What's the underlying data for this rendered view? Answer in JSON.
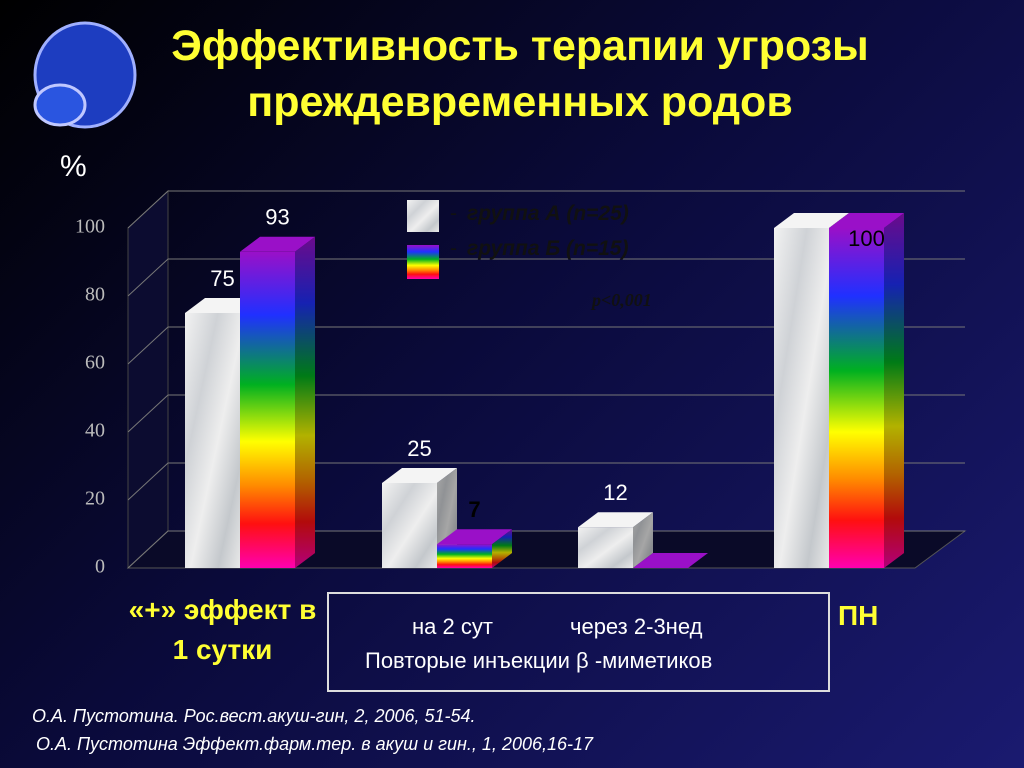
{
  "chart_data": {
    "type": "bar3d",
    "title": "Эффективность терапии угрозы преждевременных родов",
    "y_label": "%",
    "categories": [
      "«+» эффект в 1 сутки",
      "на 2 сут",
      "через 2-3нед",
      "ПН"
    ],
    "group_label": "Повторые инъекции β -миметиков",
    "series": [
      {
        "name": "группа А (n=25)",
        "color": "#d9d9d9",
        "values": [
          75,
          25,
          12,
          100
        ],
        "value_labels": [
          "75",
          "25",
          "12",
          null
        ]
      },
      {
        "name": "группа Б (n=15)",
        "color": "#9a10c8",
        "values": [
          93,
          7,
          0,
          100
        ],
        "value_labels": [
          "93",
          "7",
          null,
          "100"
        ]
      }
    ],
    "ylim": [
      0,
      100
    ],
    "yticks": [
      0,
      20,
      40,
      60,
      80,
      100
    ],
    "grid": true,
    "annotation": "p<0,001",
    "references": [
      "О.А. Пустотина. Рос.вест.акуш-гин, 2, 2006, 51-54.",
      "О.А. Пустотина Эффект.фарм.тер. в акуш и гин., 1, 2006,16-17"
    ]
  }
}
